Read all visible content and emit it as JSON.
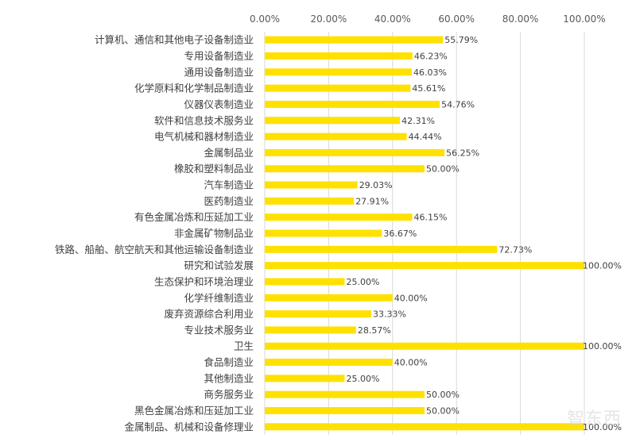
{
  "chart_data": {
    "type": "bar",
    "orientation": "horizontal",
    "title": "",
    "xlabel": "",
    "ylabel": "",
    "xlim": [
      0,
      100
    ],
    "ticks": [
      "0.00%",
      "20.00%",
      "40.00%",
      "60.00%",
      "80.00%",
      "100.00%"
    ],
    "tick_position": "top",
    "grid": true,
    "bar_color": "#FFE100",
    "categories": [
      "计算机、通信和其他电子设备制造业",
      "专用设备制造业",
      "通用设备制造业",
      "化学原料和化学制品制造业",
      "仪器仪表制造业",
      "软件和信息技术服务业",
      "电气机械和器材制造业",
      "金属制品业",
      "橡胶和塑料制品业",
      "汽车制造业",
      "医药制造业",
      "有色金属冶炼和压延加工业",
      "非金属矿物制品业",
      "铁路、船舶、航空航天和其他运输设备制造业",
      "研究和试验发展",
      "生态保护和环境治理业",
      "化学纤维制造业",
      "废弃资源综合利用业",
      "专业技术服务业",
      "卫生",
      "食品制造业",
      "其他制造业",
      "商务服务业",
      "黑色金属冶炼和压延加工业",
      "金属制品、机械和设备修理业"
    ],
    "values": [
      55.79,
      46.23,
      46.03,
      45.61,
      54.76,
      42.31,
      44.44,
      56.25,
      50.0,
      29.03,
      27.91,
      46.15,
      36.67,
      72.73,
      100.0,
      25.0,
      40.0,
      33.33,
      28.57,
      100.0,
      40.0,
      25.0,
      50.0,
      50.0,
      100.0
    ],
    "value_labels": [
      "55.79%",
      "46.23%",
      "46.03%",
      "45.61%",
      "54.76%",
      "42.31%",
      "44.44%",
      "56.25%",
      "50.00%",
      "29.03%",
      "27.91%",
      "46.15%",
      "36.67%",
      "72.73%",
      "100.00%",
      "25.00%",
      "40.00%",
      "33.33%",
      "28.57%",
      "100.00%",
      "40.00%",
      "25.00%",
      "50.00%",
      "50.00%",
      "100.00%"
    ]
  },
  "watermark": "智东西"
}
